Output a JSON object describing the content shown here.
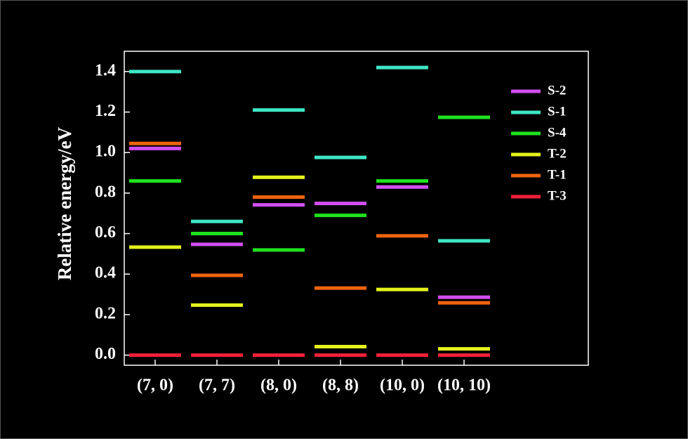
{
  "chart_data": {
    "type": "level",
    "ylabel": "Relative energy/eV",
    "categories": [
      "(7, 0)",
      "(7, 7)",
      "(8, 0)",
      "(8, 8)",
      "(10, 0)",
      "(10, 10)"
    ],
    "series": [
      {
        "name": "S-2",
        "color": "#d24ff2",
        "values": [
          1.02,
          0.547,
          0.742,
          0.749,
          0.83,
          0.286
        ]
      },
      {
        "name": "S-1",
        "color": "#3fe6c4",
        "values": [
          1.4,
          0.66,
          1.21,
          0.976,
          1.42,
          0.564
        ]
      },
      {
        "name": "S-4",
        "color": "#1fe21f",
        "values": [
          0.86,
          0.6,
          0.519,
          0.69,
          0.86,
          1.174
        ]
      },
      {
        "name": "T-2",
        "color": "#e4f21c",
        "values": [
          0.533,
          0.247,
          0.878,
          0.042,
          0.324,
          0.031
        ]
      },
      {
        "name": "T-1",
        "color": "#f0640f",
        "values": [
          1.045,
          0.394,
          0.78,
          0.331,
          0.589,
          0.258
        ]
      },
      {
        "name": "T-3",
        "color": "#f2203a",
        "values": [
          0,
          0,
          0,
          0,
          0,
          0
        ]
      }
    ],
    "ylim": [
      -0.05,
      1.5
    ],
    "yticks": [
      {
        "value": 0,
        "label": "0.0"
      },
      0.2,
      0.4,
      0.6,
      0.8,
      {
        "value": 1,
        "label": "1.0"
      },
      1.2,
      1.4
    ],
    "legend": "upper right"
  }
}
